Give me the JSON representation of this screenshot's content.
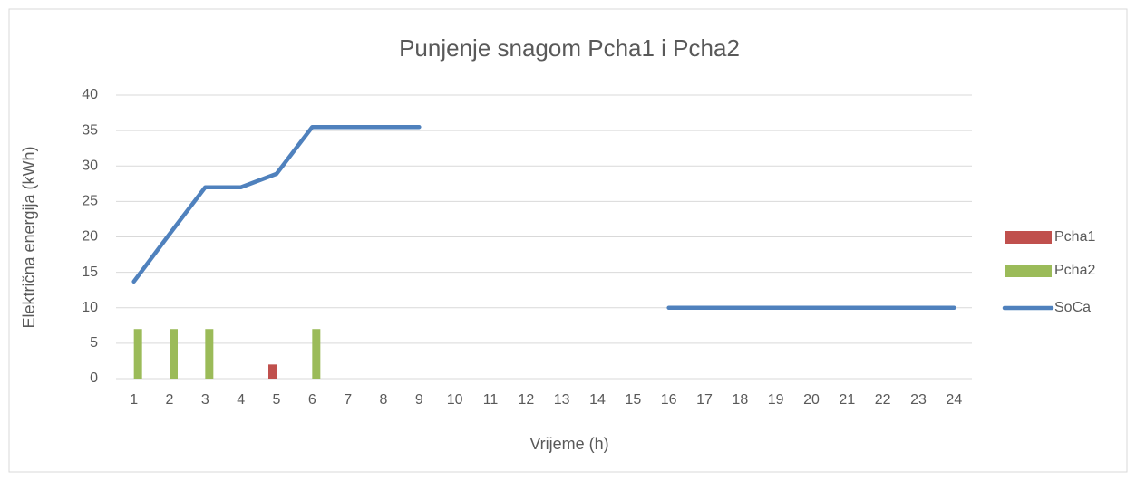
{
  "chart_data": {
    "type": "bar_line",
    "title": "Punjenje snagom Pcha1 i Pcha2",
    "xlabel": "Vrijeme (h)",
    "ylabel": "Električna energija (kWh)",
    "categories": [
      1,
      2,
      3,
      4,
      5,
      6,
      7,
      8,
      9,
      10,
      11,
      12,
      13,
      14,
      15,
      16,
      17,
      18,
      19,
      20,
      21,
      22,
      23,
      24
    ],
    "series": [
      {
        "name": "Pcha1",
        "type": "bar",
        "color": "#c0504d",
        "values": [
          0,
          0,
          0,
          0,
          2,
          0,
          0,
          0,
          0,
          0,
          0,
          0,
          0,
          0,
          0,
          0,
          0,
          0,
          0,
          0,
          0,
          0,
          0,
          0
        ]
      },
      {
        "name": "Pcha2",
        "type": "bar",
        "color": "#9bbb59",
        "values": [
          7,
          7,
          7,
          0,
          0,
          7,
          0,
          0,
          0,
          0,
          0,
          0,
          0,
          0,
          0,
          0,
          0,
          0,
          0,
          0,
          0,
          0,
          0,
          0
        ]
      },
      {
        "name": "SoCa",
        "type": "line",
        "color": "#4f81bd",
        "values": [
          13.7,
          20.4,
          27,
          27,
          28.9,
          35.5,
          35.5,
          35.5,
          35.5,
          null,
          null,
          null,
          null,
          null,
          null,
          10,
          10,
          10,
          10,
          10,
          10,
          10,
          10,
          10
        ]
      }
    ],
    "ylim": [
      0,
      40
    ],
    "yticks": [
      0,
      5,
      10,
      15,
      20,
      25,
      30,
      35,
      40
    ],
    "grid": true,
    "legend": "right"
  }
}
